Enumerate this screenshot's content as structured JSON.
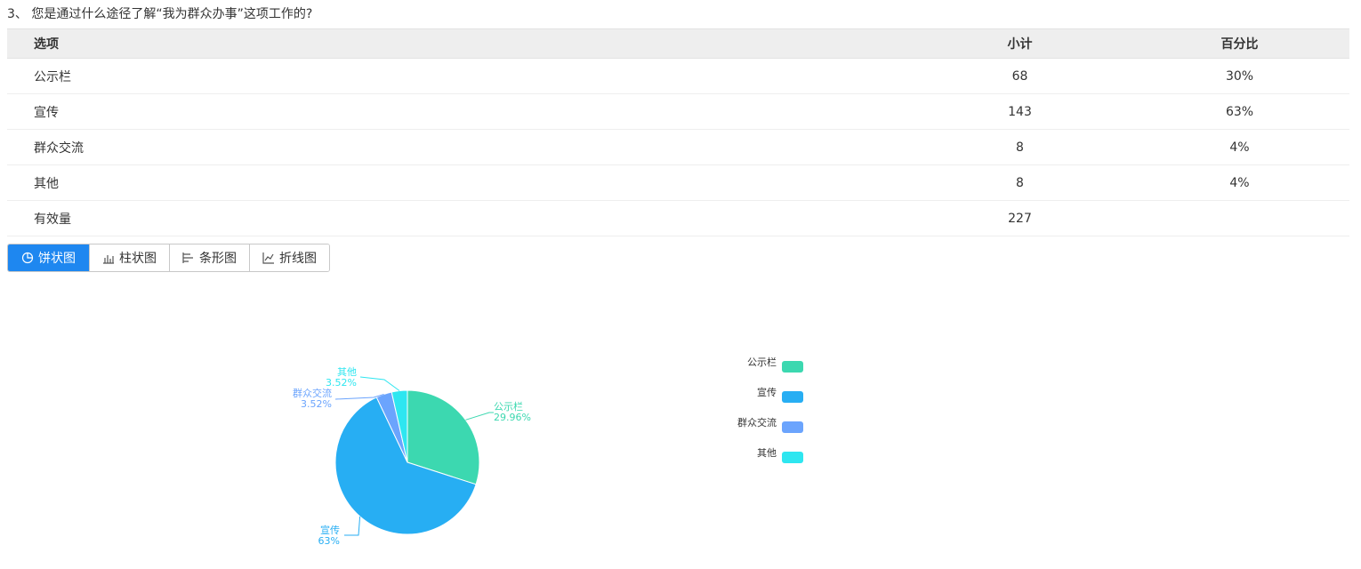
{
  "question": {
    "title": "3、 您是通过什么途径了解“我为群众办事”这项工作的?"
  },
  "table": {
    "headers": {
      "option": "选项",
      "count": "小计",
      "percent": "百分比"
    },
    "rows": [
      {
        "option": "公示栏",
        "count": "68",
        "percent": "30%"
      },
      {
        "option": "宣传",
        "count": "143",
        "percent": "63%"
      },
      {
        "option": "群众交流",
        "count": "8",
        "percent": "4%"
      },
      {
        "option": "其他",
        "count": "8",
        "percent": "4%"
      }
    ],
    "total": {
      "label": "有效量",
      "count": "227"
    }
  },
  "chart_tabs": [
    {
      "label": "饼状图",
      "icon": "pie-chart-icon",
      "active": true
    },
    {
      "label": "柱状图",
      "icon": "column-chart-icon",
      "active": false
    },
    {
      "label": "条形图",
      "icon": "bar-chart-icon",
      "active": false
    },
    {
      "label": "折线图",
      "icon": "line-chart-icon",
      "active": false
    }
  ],
  "chart_data": {
    "type": "pie",
    "title": "",
    "slices": [
      {
        "name": "公示栏",
        "value": 68,
        "label": "29.96%",
        "color": "#3cd8b0"
      },
      {
        "name": "宣传",
        "value": 143,
        "label": "63%",
        "color": "#27aef3"
      },
      {
        "name": "群众交流",
        "value": 8,
        "label": "3.52%",
        "color": "#6ba4fd"
      },
      {
        "name": "其他",
        "value": 8,
        "label": "3.52%",
        "color": "#2ee6f0"
      }
    ],
    "legend": {
      "placement": "right",
      "items": [
        "公示栏",
        "宣传",
        "群众交流",
        "其他"
      ]
    }
  },
  "colors": {
    "accent": "#1e87f0",
    "header_bg": "#eeeeee"
  }
}
